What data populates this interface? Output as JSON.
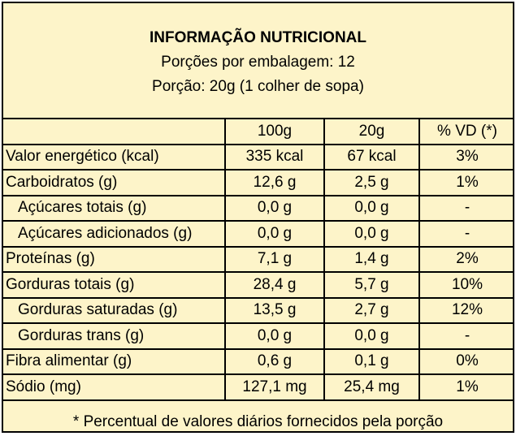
{
  "header": {
    "title": "INFORMAÇÃO NUTRICIONAL",
    "servings_per_package": "Porções por embalagem: 12",
    "serving_size": "Porção: 20g (1 colher de sopa)"
  },
  "table": {
    "columns": [
      "",
      "100g",
      "20g",
      "% VD (*)"
    ],
    "rows": [
      {
        "nutrient": "Valor energético (kcal)",
        "per_100g": "335 kcal",
        "per_serving": "67 kcal",
        "dv": "3%",
        "indent": false
      },
      {
        "nutrient": "Carboidratos (g)",
        "per_100g": "12,6 g",
        "per_serving": "2,5 g",
        "dv": "1%",
        "indent": false
      },
      {
        "nutrient": "Açúcares totais (g)",
        "per_100g": "0,0 g",
        "per_serving": "0,0 g",
        "dv": "-",
        "indent": true
      },
      {
        "nutrient": "Açúcares adicionados (g)",
        "per_100g": "0,0 g",
        "per_serving": "0,0 g",
        "dv": "-",
        "indent": true
      },
      {
        "nutrient": "Proteínas (g)",
        "per_100g": "7,1 g",
        "per_serving": "1,4 g",
        "dv": "2%",
        "indent": false
      },
      {
        "nutrient": "Gorduras totais (g)",
        "per_100g": "28,4 g",
        "per_serving": "5,7 g",
        "dv": "10%",
        "indent": false
      },
      {
        "nutrient": "Gorduras saturadas (g)",
        "per_100g": "13,5 g",
        "per_serving": "2,7 g",
        "dv": "12%",
        "indent": true
      },
      {
        "nutrient": "Gorduras trans (g)",
        "per_100g": "0,0 g",
        "per_serving": "0,0 g",
        "dv": "-",
        "indent": true
      },
      {
        "nutrient": "Fibra alimentar (g)",
        "per_100g": "0,6 g",
        "per_serving": "0,1 g",
        "dv": "0%",
        "indent": false
      },
      {
        "nutrient": "Sódio (mg)",
        "per_100g": "127,1 mg",
        "per_serving": "25,4 mg",
        "dv": "1%",
        "indent": false
      }
    ]
  },
  "footer": {
    "note": "* Percentual de valores diários fornecidos pela porção"
  },
  "colors": {
    "background": "#fdf4c9",
    "border": "#000000",
    "text": "#000000"
  }
}
